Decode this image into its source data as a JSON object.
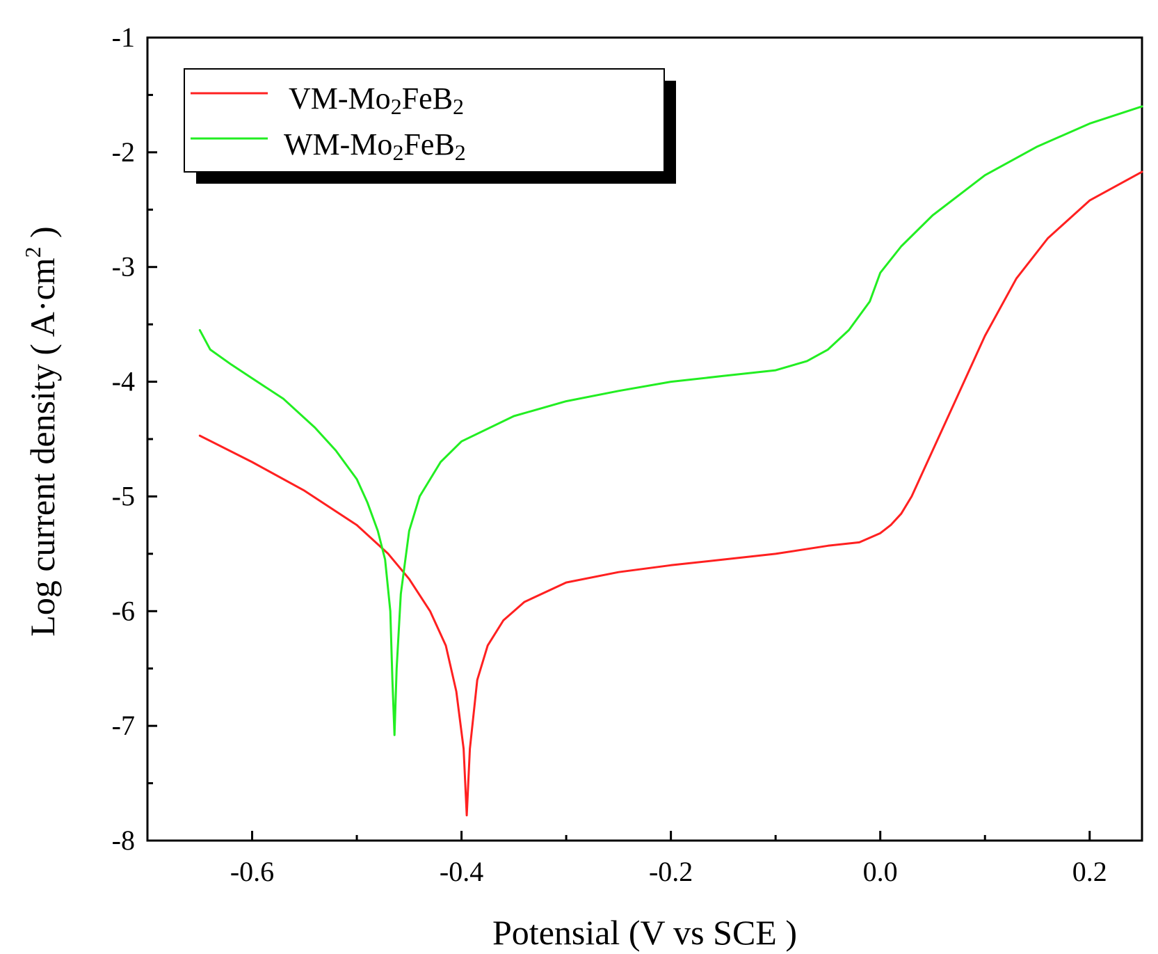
{
  "chart_data": {
    "type": "line",
    "title": "",
    "xlabel": "Potensial (V vs SCE )",
    "ylabel_prefix": "Log current density ( A·cm",
    "ylabel_sup": "2",
    "ylabel_suffix": " )",
    "xlim": [
      -0.7,
      0.25
    ],
    "ylim": [
      -8,
      -1
    ],
    "x_ticks": [
      -0.6,
      -0.4,
      -0.2,
      0.0,
      0.2
    ],
    "x_tick_labels": [
      "-0.6",
      "-0.4",
      "-0.2",
      "0.0",
      "0.2"
    ],
    "y_ticks": [
      -1,
      -2,
      -3,
      -4,
      -5,
      -6,
      -7,
      -8
    ],
    "y_tick_labels": [
      "-1",
      "-2",
      "-3",
      "-4",
      "-5",
      "-6",
      "-7",
      "-8"
    ],
    "grid": false,
    "legend": {
      "placement": "top-left",
      "entries": [
        {
          "base": "VM-Mo",
          "sub1": "2",
          "mid": "FeB",
          "sub2": "2",
          "color": "#ff2020"
        },
        {
          "base": "WM-Mo",
          "sub1": "2",
          "mid": "FeB",
          "sub2": "2",
          "color": "#22ee22"
        }
      ]
    },
    "series": [
      {
        "name": "VM-Mo2FeB2",
        "color": "#ff2020",
        "x": [
          -0.65,
          -0.6,
          -0.55,
          -0.5,
          -0.47,
          -0.45,
          -0.43,
          -0.415,
          -0.405,
          -0.398,
          -0.395,
          -0.392,
          -0.385,
          -0.375,
          -0.36,
          -0.34,
          -0.3,
          -0.25,
          -0.2,
          -0.15,
          -0.1,
          -0.05,
          -0.02,
          0.0,
          0.01,
          0.02,
          0.03,
          0.05,
          0.07,
          0.1,
          0.13,
          0.16,
          0.2,
          0.25
        ],
        "y": [
          -4.47,
          -4.7,
          -4.95,
          -5.25,
          -5.5,
          -5.72,
          -6.0,
          -6.3,
          -6.7,
          -7.2,
          -7.78,
          -7.2,
          -6.6,
          -6.3,
          -6.08,
          -5.92,
          -5.75,
          -5.66,
          -5.6,
          -5.55,
          -5.5,
          -5.43,
          -5.4,
          -5.32,
          -5.25,
          -5.15,
          -5.0,
          -4.6,
          -4.2,
          -3.6,
          -3.1,
          -2.75,
          -2.42,
          -2.17
        ]
      },
      {
        "name": "WM-Mo2FeB2",
        "color": "#22ee22",
        "x": [
          -0.65,
          -0.64,
          -0.62,
          -0.6,
          -0.57,
          -0.54,
          -0.52,
          -0.5,
          -0.49,
          -0.48,
          -0.473,
          -0.468,
          -0.466,
          -0.464,
          -0.462,
          -0.458,
          -0.45,
          -0.44,
          -0.42,
          -0.4,
          -0.35,
          -0.3,
          -0.25,
          -0.2,
          -0.15,
          -0.1,
          -0.07,
          -0.05,
          -0.03,
          -0.01,
          0.0,
          0.02,
          0.05,
          0.1,
          0.15,
          0.2,
          0.25
        ],
        "y": [
          -3.55,
          -3.72,
          -3.85,
          -3.97,
          -4.15,
          -4.4,
          -4.6,
          -4.85,
          -5.05,
          -5.3,
          -5.55,
          -6.0,
          -6.6,
          -7.08,
          -6.5,
          -5.85,
          -5.3,
          -5.0,
          -4.7,
          -4.52,
          -4.3,
          -4.17,
          -4.08,
          -4.0,
          -3.95,
          -3.9,
          -3.82,
          -3.72,
          -3.55,
          -3.3,
          -3.05,
          -2.82,
          -2.55,
          -2.2,
          -1.95,
          -1.75,
          -1.6
        ]
      }
    ]
  }
}
